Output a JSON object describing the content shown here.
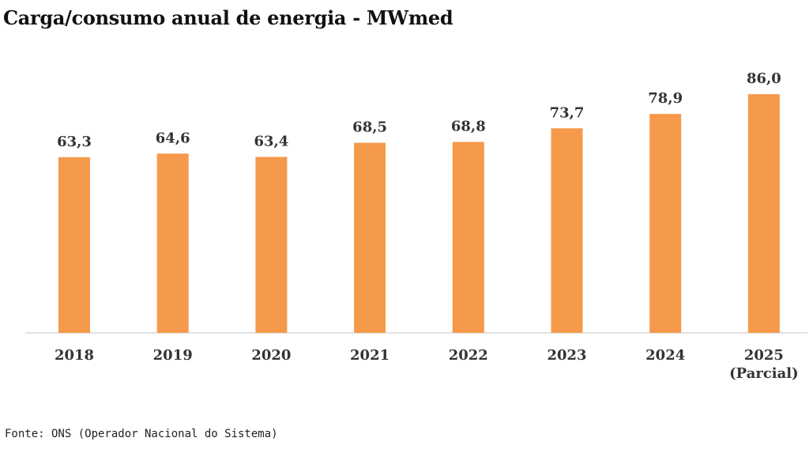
{
  "title": "Carga/consumo anual de energia - MWmed",
  "source": "Fonte: ONS (Operador Nacional do Sistema)",
  "colors": {
    "bar": "#F5994A",
    "axis": "#D9D9D9",
    "text": "#333333"
  },
  "chart_data": {
    "type": "bar",
    "title": "Carga/consumo anual de energia - MWmed",
    "xlabel": "",
    "ylabel": "",
    "categories": [
      [
        "2018"
      ],
      [
        "2019"
      ],
      [
        "2020"
      ],
      [
        "2021"
      ],
      [
        "2022"
      ],
      [
        "2023"
      ],
      [
        "2024"
      ],
      [
        "2025",
        "(Parcial)"
      ]
    ],
    "values": [
      63.3,
      64.6,
      63.4,
      68.5,
      68.8,
      73.7,
      78.9,
      86.0
    ],
    "data_labels": [
      "63,3",
      "64,6",
      "63,4",
      "68,5",
      "68,8",
      "73,7",
      "78,9",
      "86,0"
    ],
    "ylim": [
      0,
      88
    ],
    "grid": false,
    "legend": "none"
  }
}
